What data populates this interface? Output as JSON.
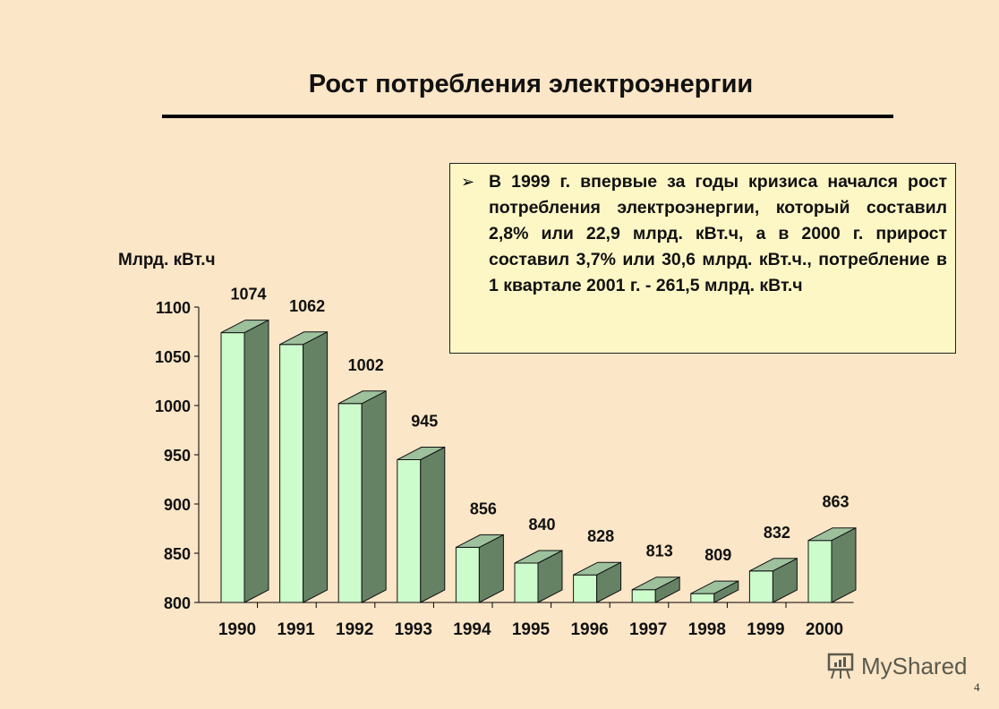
{
  "slide": {
    "title": "Рост потребления электроэнергии",
    "page_number": "4",
    "watermark": "MyShared"
  },
  "note": {
    "bullet_icon": "arrow-bullet-icon",
    "bullet": "➢",
    "text": "В 1999 г. впервые за годы кризиса начался рост потребления электроэнергии, который составил 2,8% или 22,9 млрд. кВт.ч, а в 2000 г. прирост составил 3,7% или 30,6 млрд. кВт.ч., потребление в 1 квартале 2001 г. - 261,5 млрд. кВт.ч"
  },
  "colors": {
    "background": "#fbe6c7",
    "bar_front": "#ccfccc",
    "bar_side": "#658265",
    "bar_top": "#9dc09d",
    "note_bg": "#fdf7c6"
  },
  "chart_data": {
    "type": "bar",
    "title": "Рост потребления электроэнергии",
    "xlabel": "",
    "ylabel": "Млрд. кВт.ч",
    "categories": [
      "1990",
      "1991",
      "1992",
      "1993",
      "1994",
      "1995",
      "1996",
      "1997",
      "1998",
      "1999",
      "2000"
    ],
    "values": [
      1074,
      1062,
      1002,
      945,
      856,
      840,
      828,
      813,
      809,
      832,
      863
    ],
    "ylim": [
      800,
      1100
    ],
    "yticks": [
      800,
      850,
      900,
      950,
      1000,
      1050,
      1100
    ],
    "grid": false,
    "legend": null,
    "style": "3d-bar"
  }
}
